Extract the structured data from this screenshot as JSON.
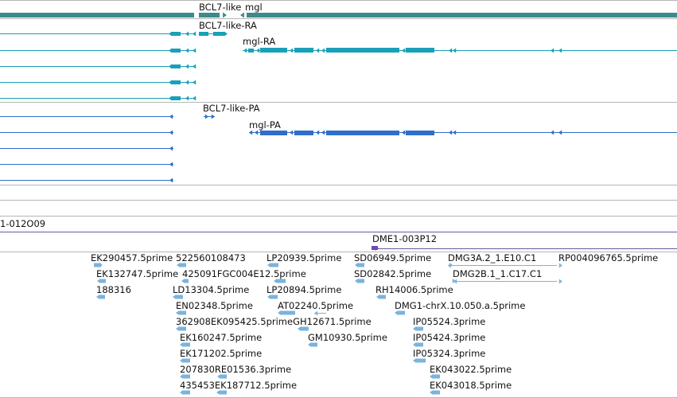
{
  "tracks": {
    "gene_track": {
      "labels": [
        "BCL7-like",
        "mgl"
      ]
    },
    "transcript_track": {
      "labels": [
        "BCL7-like-RA",
        "mgl-RA"
      ]
    },
    "protein_track": {
      "labels": [
        "BCL7-like-PA",
        "mgl-PA"
      ]
    },
    "clone_track": {
      "labels": [
        "1-012O09",
        "DME1-003P12"
      ]
    },
    "est_track": {
      "labels": [
        "EK290457.5prime",
        "522560108473",
        "LP20939.5prime",
        "SD06949.5prime",
        "DMG3A.2_1.E10.C1",
        "RP004096765.5prime",
        "EK132747.5prime",
        "425091FGC004E12.5prime",
        "SD02842.5prime",
        "DMG2B.1_1.C17.C1",
        "188316",
        "LD13304.5prime",
        "LP20894.5prime",
        "RH14006.5prime",
        "EN02348.5prime",
        "AT02240.5prime",
        "DMG1-chrX.10.050.a.5prime",
        "362908EK095425.5primeGH12671.5prime",
        "IP05524.3prime",
        "EK160247.5prime",
        "GM10930.5prime",
        "IP05424.3prime",
        "EK171202.5prime",
        "IP05324.3prime",
        "207830RE01536.3prime",
        "EK043022.5prime",
        "435453EK187712.5prime",
        "EK043018.5prime"
      ]
    }
  },
  "colors": {
    "gene": "#3a8b8b",
    "transcript": "#1aa0b8",
    "protein": "#2f6fc8",
    "clone": "#6a4ab0",
    "est": "#7ab4dc",
    "divider": "#b5b5b5",
    "clone_line": "#6a5a9a"
  }
}
